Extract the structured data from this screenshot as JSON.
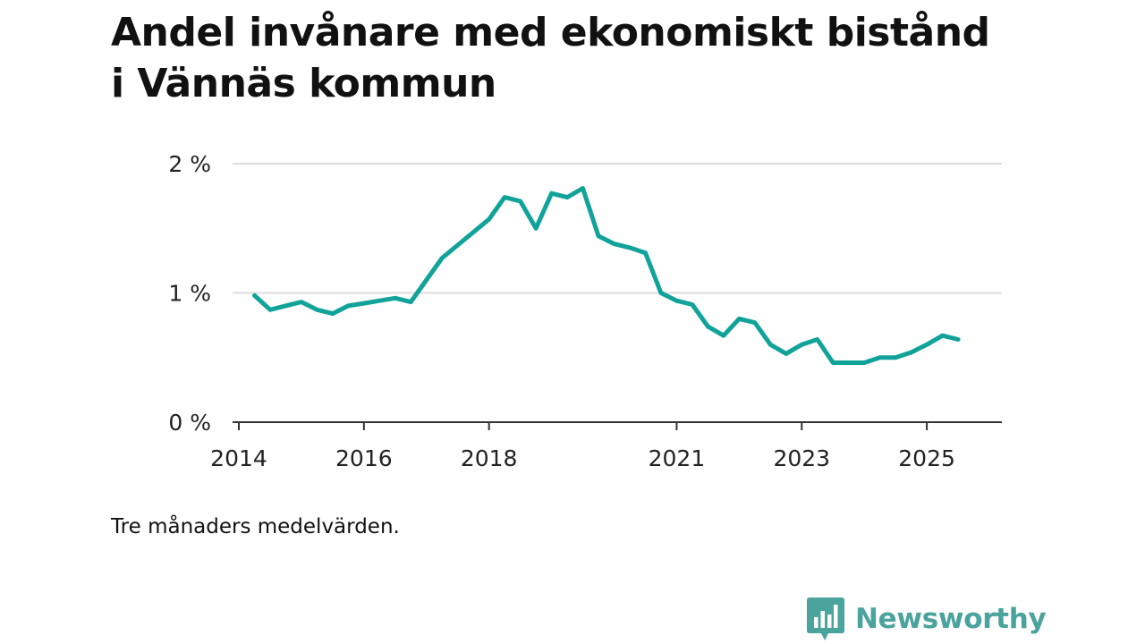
{
  "title": "Andel invånare med ekonomiskt bistånd i Vännäs kommun",
  "note": "Tre månaders medelvärden.",
  "brand": {
    "name": "Newsworthy",
    "color": "#4aa39c"
  },
  "chart_data": {
    "type": "line",
    "title": "Andel invånare med ekonomiskt bistånd i Vännäs kommun",
    "xlabel": "",
    "ylabel": "",
    "xlim": [
      2013.9,
      2026.2
    ],
    "ylim": [
      0,
      2
    ],
    "line_color": "#11a39a",
    "grid": true,
    "y_ticks": [
      {
        "value": 0,
        "label": "0 %"
      },
      {
        "value": 1,
        "label": "1 %"
      },
      {
        "value": 2,
        "label": "2 %"
      }
    ],
    "x_ticks": [
      {
        "value": 2014,
        "label": "2014"
      },
      {
        "value": 2016,
        "label": "2016"
      },
      {
        "value": 2018,
        "label": "2018"
      },
      {
        "value": 2021,
        "label": "2021"
      },
      {
        "value": 2023,
        "label": "2023"
      },
      {
        "value": 2025,
        "label": "2025"
      }
    ],
    "series": [
      {
        "name": "Andel invånare med ekonomiskt bistånd",
        "x": [
          2014.25,
          2014.5,
          2014.75,
          2015.0,
          2015.25,
          2015.5,
          2015.75,
          2016.0,
          2016.25,
          2016.5,
          2016.75,
          2017.0,
          2017.25,
          2017.5,
          2017.75,
          2018.0,
          2018.25,
          2018.5,
          2018.75,
          2019.0,
          2019.25,
          2019.5,
          2019.75,
          2020.0,
          2020.25,
          2020.5,
          2020.75,
          2021.0,
          2021.25,
          2021.5,
          2021.75,
          2022.0,
          2022.25,
          2022.5,
          2022.75,
          2023.0,
          2023.25,
          2023.5,
          2023.75,
          2024.0,
          2024.25,
          2024.5,
          2024.75,
          2025.0,
          2025.25,
          2025.5
        ],
        "values": [
          0.98,
          0.87,
          0.9,
          0.93,
          0.87,
          0.84,
          0.9,
          0.92,
          0.94,
          0.96,
          0.93,
          1.1,
          1.27,
          1.37,
          1.47,
          1.57,
          1.74,
          1.71,
          1.5,
          1.77,
          1.74,
          1.81,
          1.44,
          1.38,
          1.35,
          1.31,
          1.0,
          0.94,
          0.91,
          0.74,
          0.67,
          0.8,
          0.77,
          0.6,
          0.53,
          0.6,
          0.64,
          0.46,
          0.46,
          0.46,
          0.5,
          0.5,
          0.54,
          0.6,
          0.67,
          0.64
        ]
      }
    ]
  }
}
